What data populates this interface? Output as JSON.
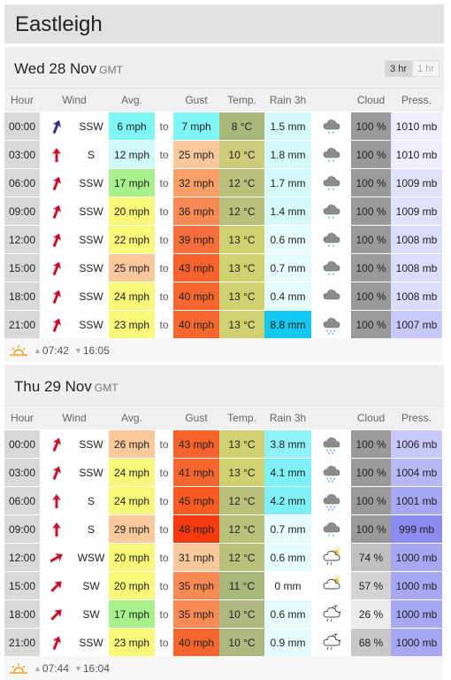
{
  "location": {
    "name": "Eastleigh"
  },
  "toggle": {
    "on": "3 hr",
    "off": "1 hr"
  },
  "headers": {
    "hour": "Hour",
    "wind": "Wind",
    "avg": "Avg.",
    "gust": "Gust",
    "temp": "Temp.",
    "rain": "Rain 3h",
    "cloud": "Cloud",
    "press": "Press."
  },
  "colors": {
    "accent": "#e2e2e2"
  },
  "days": [
    {
      "title": "Wed 28 Nov",
      "tz": "GMT",
      "sunrise": "07:42",
      "sunset": "16:05",
      "rows": [
        {
          "hour": "00:00",
          "dir": "SSW",
          "arrow_deg": 22,
          "arrow_color": "#3a2a8c",
          "avg": "6 mph",
          "avg_color": "#7ff5f5",
          "gust": "7 mph",
          "gust_color": "#7ff5f5",
          "temp": "8 °C",
          "temp_color": "#a8b87a",
          "rain": "1.5 mm",
          "rain_color": "#d6fafa",
          "icon": "rain-cloud-icon",
          "cloud": "100 %",
          "cloud_color": "#9a9a9a",
          "press": "1010 mb",
          "press_color": "#eeeeff"
        },
        {
          "hour": "03:00",
          "dir": "S",
          "arrow_deg": 0,
          "arrow_color": "#c8102e",
          "avg": "12 mph",
          "avg_color": "#d0fafa",
          "gust": "25 mph",
          "gust_color": "#f9c89c",
          "temp": "10 °C",
          "temp_color": "#cccc7a",
          "rain": "1.8 mm",
          "rain_color": "#d6fafa",
          "icon": "rain-cloud-icon",
          "cloud": "100 %",
          "cloud_color": "#9a9a9a",
          "press": "1010 mb",
          "press_color": "#eeeeff"
        },
        {
          "hour": "06:00",
          "dir": "SSW",
          "arrow_deg": 22,
          "arrow_color": "#c8102e",
          "avg": "17 mph",
          "avg_color": "#a8f08c",
          "gust": "32 mph",
          "gust_color": "#f9a06a",
          "temp": "12 °C",
          "temp_color": "#b8c07a",
          "rain": "1.7 mm",
          "rain_color": "#d6fafa",
          "icon": "rain-cloud-icon",
          "cloud": "100 %",
          "cloud_color": "#9a9a9a",
          "press": "1009 mb",
          "press_color": "#e2e2fe"
        },
        {
          "hour": "09:00",
          "dir": "SSW",
          "arrow_deg": 22,
          "arrow_color": "#c8102e",
          "avg": "20 mph",
          "avg_color": "#f8f87a",
          "gust": "36 mph",
          "gust_color": "#f98a56",
          "temp": "12 °C",
          "temp_color": "#b8c07a",
          "rain": "1.4 mm",
          "rain_color": "#d6fafa",
          "icon": "rain-cloud-icon",
          "cloud": "100 %",
          "cloud_color": "#9a9a9a",
          "press": "1009 mb",
          "press_color": "#e2e2fe"
        },
        {
          "hour": "12:00",
          "dir": "SSW",
          "arrow_deg": 22,
          "arrow_color": "#c8102e",
          "avg": "22 mph",
          "avg_color": "#f8f87a",
          "gust": "39 mph",
          "gust_color": "#f86e3c",
          "temp": "13 °C",
          "temp_color": "#d0d070",
          "rain": "0.6 mm",
          "rain_color": "#e6fcfc",
          "icon": "rain-cloud-icon",
          "cloud": "100 %",
          "cloud_color": "#9a9a9a",
          "press": "1008 mb",
          "press_color": "#dcdcfc"
        },
        {
          "hour": "15:00",
          "dir": "SSW",
          "arrow_deg": 22,
          "arrow_color": "#c8102e",
          "avg": "25 mph",
          "avg_color": "#f9c89c",
          "gust": "43 mph",
          "gust_color": "#f8622c",
          "temp": "13 °C",
          "temp_color": "#d0d070",
          "rain": "0.7 mm",
          "rain_color": "#e6fcfc",
          "icon": "rain-cloud-icon",
          "cloud": "100 %",
          "cloud_color": "#9a9a9a",
          "press": "1008 mb",
          "press_color": "#dcdcfc"
        },
        {
          "hour": "18:00",
          "dir": "SSW",
          "arrow_deg": 22,
          "arrow_color": "#c8102e",
          "avg": "24 mph",
          "avg_color": "#f8f87a",
          "gust": "40 mph",
          "gust_color": "#f8662f",
          "temp": "13 °C",
          "temp_color": "#d0d070",
          "rain": "0.4 mm",
          "rain_color": "#e6fcfc",
          "icon": "cloud-icon",
          "cloud": "100 %",
          "cloud_color": "#9a9a9a",
          "press": "1008 mb",
          "press_color": "#dcdcfc"
        },
        {
          "hour": "21:00",
          "dir": "SSW",
          "arrow_deg": 22,
          "arrow_color": "#c8102e",
          "avg": "23 mph",
          "avg_color": "#f8f87a",
          "gust": "40 mph",
          "gust_color": "#f8662f",
          "temp": "13 °C",
          "temp_color": "#d0d070",
          "rain": "8.8 mm",
          "rain_color": "#12c8f0",
          "icon": "heavy-rain-cloud-icon",
          "cloud": "100 %",
          "cloud_color": "#9a9a9a",
          "press": "1007 mb",
          "press_color": "#c8c8fa"
        }
      ]
    },
    {
      "title": "Thu 29 Nov",
      "tz": "GMT",
      "sunrise": "07:44",
      "sunset": "16:04",
      "rows": [
        {
          "hour": "00:00",
          "dir": "SSW",
          "arrow_deg": 22,
          "arrow_color": "#c8102e",
          "avg": "26 mph",
          "avg_color": "#f9c89c",
          "gust": "43 mph",
          "gust_color": "#f8622c",
          "temp": "13 °C",
          "temp_color": "#d0d070",
          "rain": "3.8 mm",
          "rain_color": "#8ef2f8",
          "icon": "heavy-rain-cloud-icon",
          "cloud": "100 %",
          "cloud_color": "#9a9a9a",
          "press": "1006 mb",
          "press_color": "#c8c8fa"
        },
        {
          "hour": "03:00",
          "dir": "SSW",
          "arrow_deg": 22,
          "arrow_color": "#c8102e",
          "avg": "24 mph",
          "avg_color": "#f8f87a",
          "gust": "41 mph",
          "gust_color": "#f8662f",
          "temp": "13 °C",
          "temp_color": "#d0d070",
          "rain": "4.1 mm",
          "rain_color": "#7ef0f8",
          "icon": "heavy-rain-cloud-icon",
          "cloud": "100 %",
          "cloud_color": "#9a9a9a",
          "press": "1004 mb",
          "press_color": "#b8b8f6"
        },
        {
          "hour": "06:00",
          "dir": "S",
          "arrow_deg": 0,
          "arrow_color": "#c8102e",
          "avg": "24 mph",
          "avg_color": "#f8f87a",
          "gust": "45 mph",
          "gust_color": "#f85a24",
          "temp": "12 °C",
          "temp_color": "#b8c07a",
          "rain": "4.2 mm",
          "rain_color": "#7ef0f8",
          "icon": "heavy-rain-cloud-icon",
          "cloud": "100 %",
          "cloud_color": "#9a9a9a",
          "press": "1001 mb",
          "press_color": "#a8a8f2"
        },
        {
          "hour": "09:00",
          "dir": "S",
          "arrow_deg": 0,
          "arrow_color": "#c8102e",
          "avg": "29 mph",
          "avg_color": "#f9c89c",
          "gust": "48 mph",
          "gust_color": "#f83a10",
          "temp": "12 °C",
          "temp_color": "#b8c07a",
          "rain": "0.7 mm",
          "rain_color": "#e6fcfc",
          "icon": "rain-cloud-icon",
          "cloud": "100 %",
          "cloud_color": "#9a9a9a",
          "press": "999 mb",
          "press_color": "#8c8cee"
        },
        {
          "hour": "12:00",
          "dir": "WSW",
          "arrow_deg": 60,
          "arrow_color": "#c8102e",
          "avg": "20 mph",
          "avg_color": "#f8f87a",
          "gust": "31 mph",
          "gust_color": "#f9c89c",
          "temp": "12 °C",
          "temp_color": "#b8c07a",
          "rain": "0.6 mm",
          "rain_color": "#e6fcfc",
          "icon": "sun-cloud-rain-icon",
          "cloud": "74 %",
          "cloud_color": "#c0c0c0",
          "press": "1000 mb",
          "press_color": "#a8a8f2"
        },
        {
          "hour": "15:00",
          "dir": "SW",
          "arrow_deg": 45,
          "arrow_color": "#c8102e",
          "avg": "20 mph",
          "avg_color": "#f8f87a",
          "gust": "35 mph",
          "gust_color": "#f98a56",
          "temp": "11 °C",
          "temp_color": "#a8b87a",
          "rain": "0 mm",
          "rain_color": "#ffffff",
          "icon": "sun-cloud-icon",
          "cloud": "57 %",
          "cloud_color": "#d4d4d4",
          "press": "1000 mb",
          "press_color": "#a8a8f2"
        },
        {
          "hour": "18:00",
          "dir": "SW",
          "arrow_deg": 45,
          "arrow_color": "#c8102e",
          "avg": "17 mph",
          "avg_color": "#a8f08c",
          "gust": "35 mph",
          "gust_color": "#f98a56",
          "temp": "10 °C",
          "temp_color": "#b0b880",
          "rain": "0.6 mm",
          "rain_color": "#e6fcfc",
          "icon": "moon-cloud-rain-icon",
          "cloud": "26 %",
          "cloud_color": "#ececec",
          "press": "1000 mb",
          "press_color": "#a8a8f2"
        },
        {
          "hour": "21:00",
          "dir": "SSW",
          "arrow_deg": 22,
          "arrow_color": "#c8102e",
          "avg": "23 mph",
          "avg_color": "#f8f87a",
          "gust": "40 mph",
          "gust_color": "#f8662f",
          "temp": "10 °C",
          "temp_color": "#b0b880",
          "rain": "0.9 mm",
          "rain_color": "#e6fcfc",
          "icon": "moon-cloud-rain-icon",
          "cloud": "68 %",
          "cloud_color": "#c8c8c8",
          "press": "1000 mb",
          "press_color": "#a8a8f2"
        }
      ]
    }
  ]
}
